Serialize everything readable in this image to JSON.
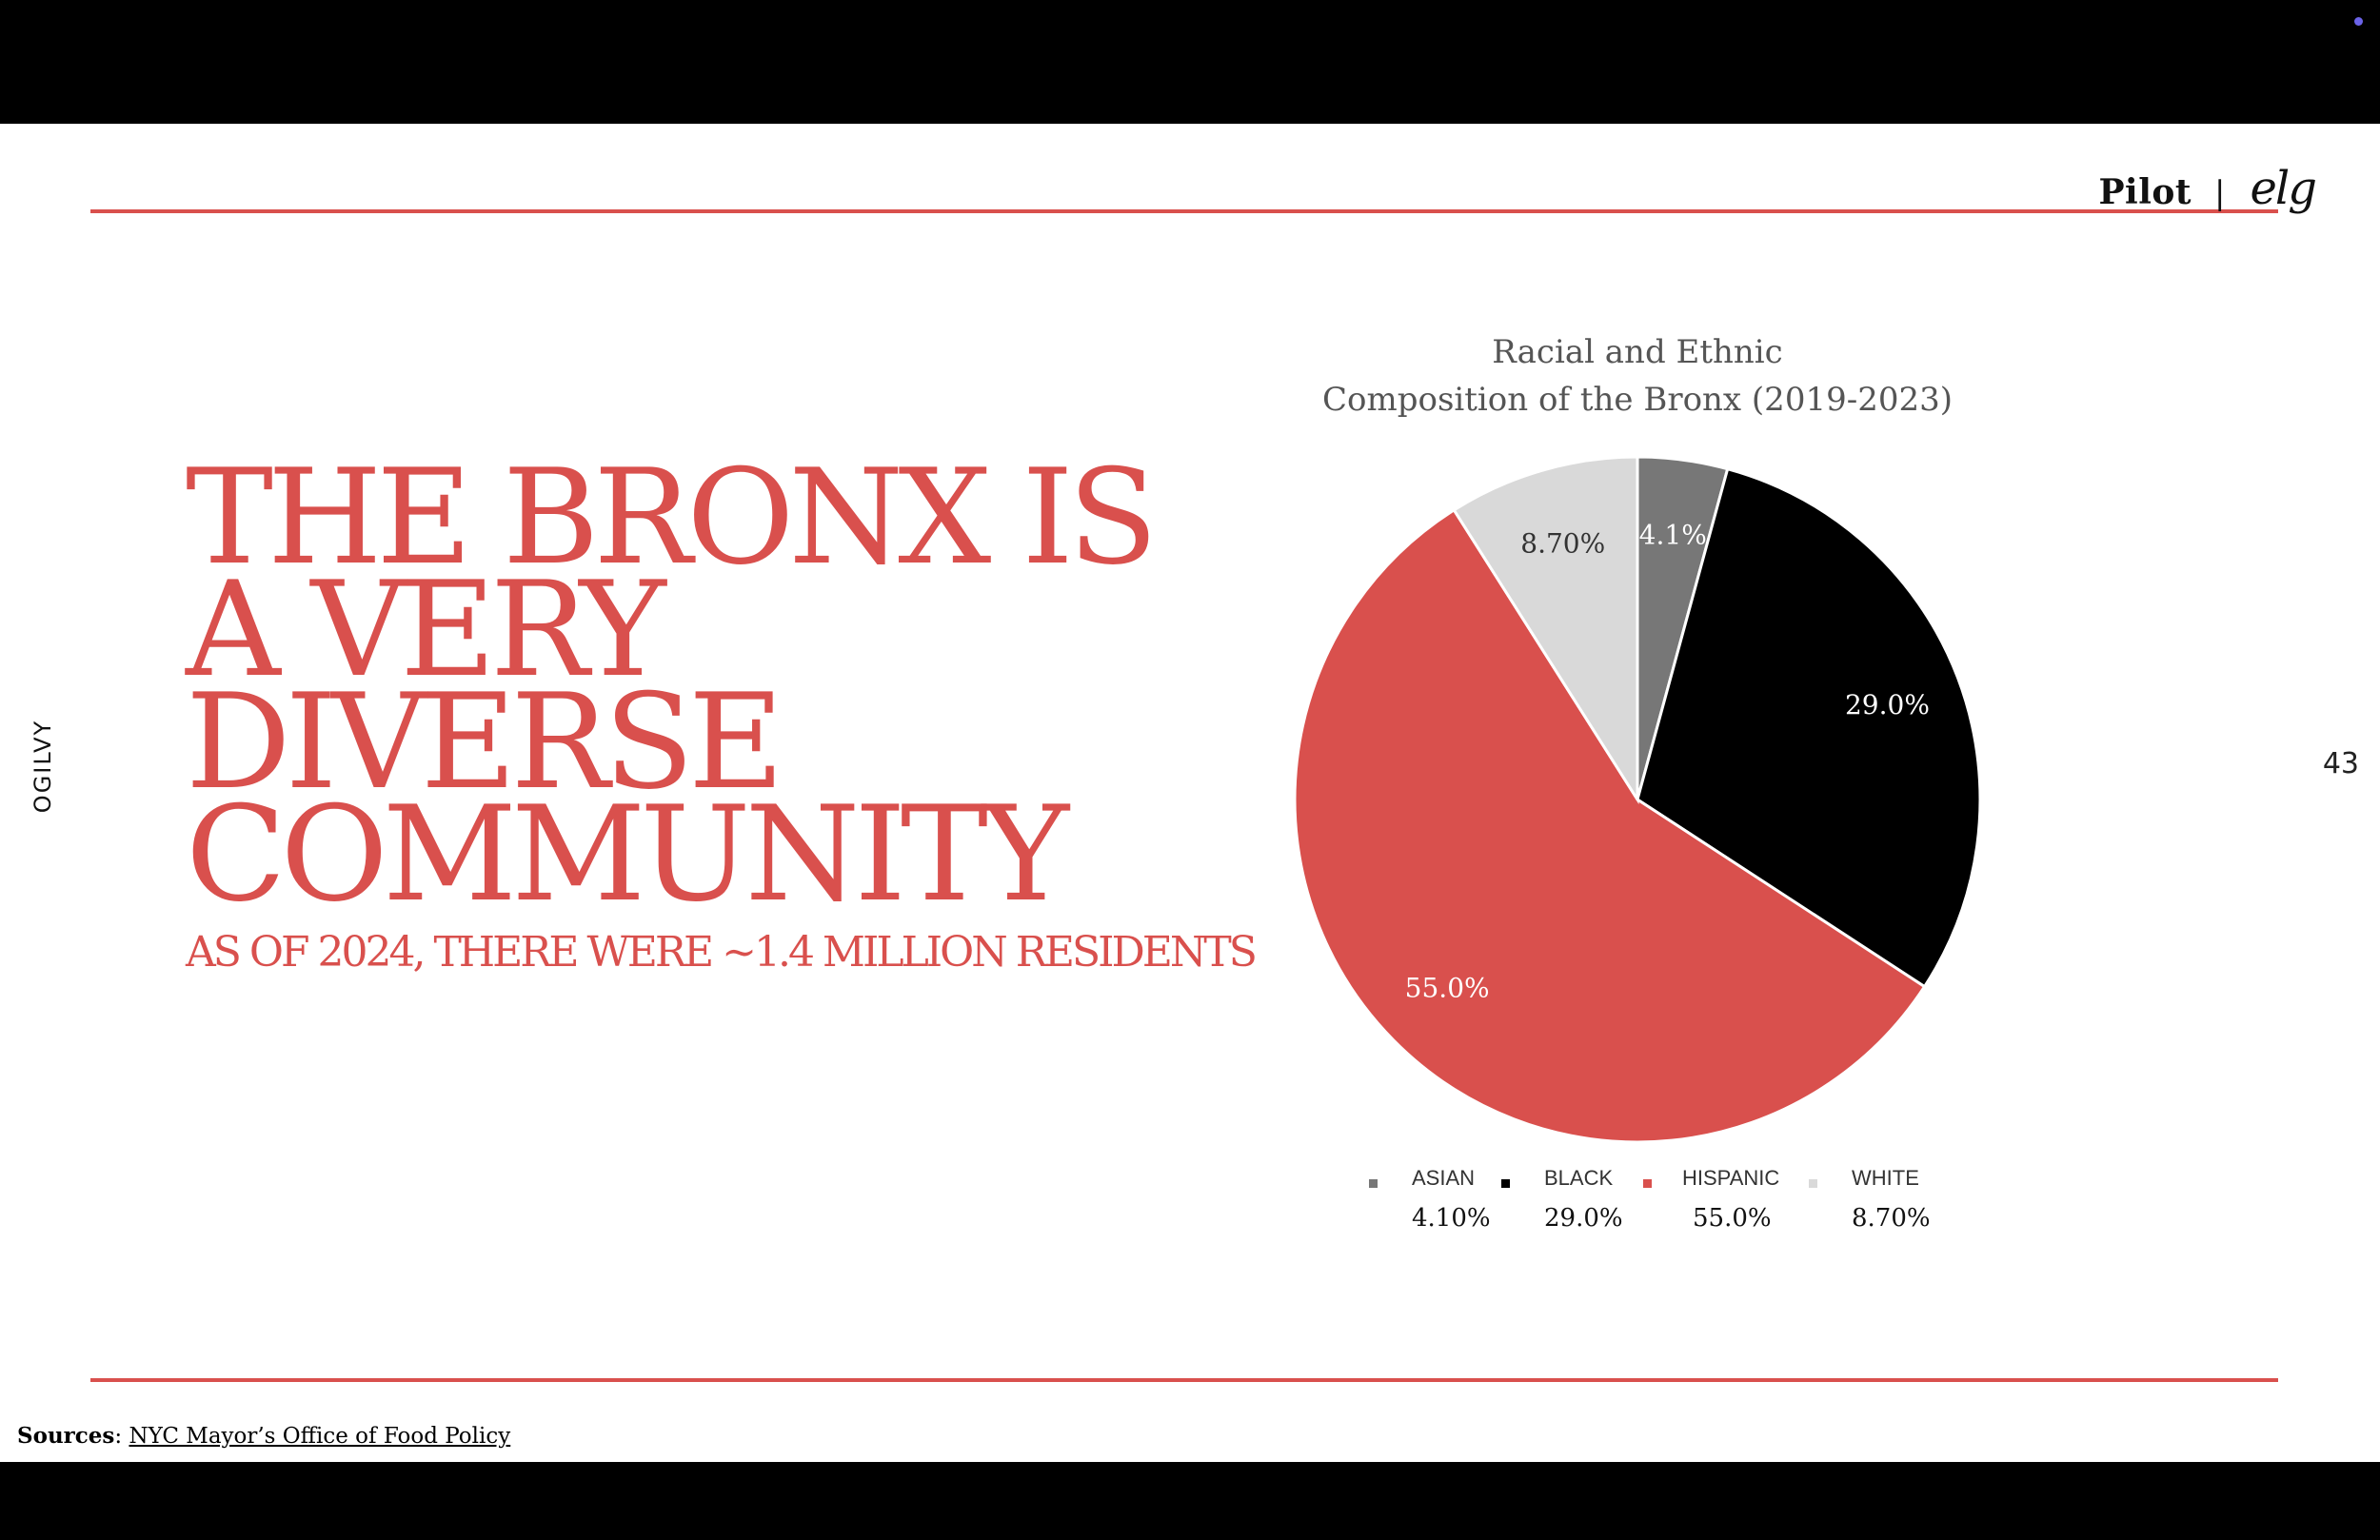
{
  "brand": {
    "pilot": "Pilot",
    "separator": "|",
    "logo_text": "elg"
  },
  "side_label": "OGILVY",
  "page_number": "43",
  "headline": {
    "lines": [
      "THE BRONX IS",
      "A VERY",
      "DIVERSE",
      "COMMUNITY"
    ],
    "subtitle": "AS OF 2024, THERE WERE ~1.4 MILLION RESIDENTS"
  },
  "sources": {
    "label": "Sources",
    "link": "NYC Mayor’s Office of Food Policy"
  },
  "colors": {
    "accent": "#d9504d",
    "asian": "#777777",
    "black": "#000000",
    "hispanic": "#d9504d",
    "white": "#d9d9d9"
  },
  "chart_data": {
    "type": "pie",
    "title_lines": [
      "Racial and Ethnic",
      "Composition of the Bronx (2019-2023)"
    ],
    "legend_placement": "bottom",
    "slices": [
      {
        "name": "ASIAN",
        "value": 4.1,
        "slice_label": "4.1%",
        "legend_value": "4.10%",
        "color": "#777777",
        "label_color": "#ffffff"
      },
      {
        "name": "BLACK",
        "value": 29.0,
        "slice_label": "29.0%",
        "legend_value": "29.0%",
        "color": "#000000",
        "label_color": "#ffffff"
      },
      {
        "name": "HISPANIC",
        "value": 55.0,
        "slice_label": "55.0%",
        "legend_value": "55.0%",
        "color": "#d9504d",
        "label_color": "#ffffff"
      },
      {
        "name": "WHITE",
        "value": 8.7,
        "slice_label": "8.70%",
        "legend_value": "8.70%",
        "color": "#d9d9d9",
        "label_color": "#333333"
      }
    ]
  }
}
